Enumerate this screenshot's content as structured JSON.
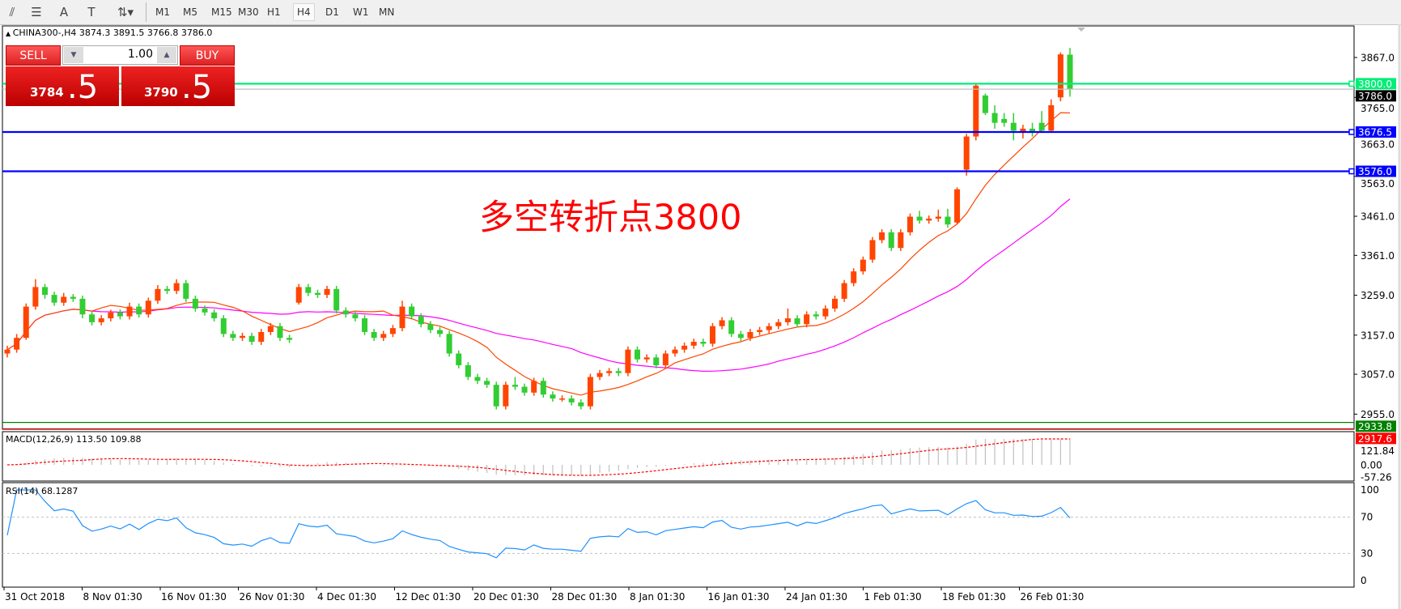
{
  "toolbar": {
    "icons": [
      "indicators-icon",
      "fibonacci-icon",
      "text-icon",
      "text-label-icon",
      "arrows-icon"
    ],
    "timeframes": [
      "M1",
      "M5",
      "M15",
      "M30",
      "H1",
      "H4",
      "D1",
      "W1",
      "MN"
    ],
    "selected_timeframe": "H4"
  },
  "chart_header": {
    "text": "CHINA300-,H4  3874.3 3891.5 3766.8 3786.0"
  },
  "trade_panel": {
    "sell_label": "SELL",
    "buy_label": "BUY",
    "lots": "1.00",
    "sell_price_main": "3784",
    "sell_price_pip": ".5",
    "buy_price_main": "3790",
    "buy_price_pip": ".5"
  },
  "annotation": "多空转折点3800",
  "colors": {
    "up": "#ff4500",
    "down": "#32cd32",
    "ma_fast": "#ff4500",
    "ma_slow": "#ff00ff",
    "rsi": "#1e90ff",
    "macd_signal": "#ff0000",
    "macd_hist": "#c0c0c0"
  },
  "chart_data": {
    "type": "candlestick",
    "symbol": "CHINA300-",
    "timeframe": "H4",
    "ylim": [
      2900,
      3900
    ],
    "y_ticks": [
      "3867.0",
      "3765.0",
      "3663.0",
      "3563.0",
      "3461.0",
      "3361.0",
      "3259.0",
      "3157.0",
      "3057.0",
      "2955.0"
    ],
    "x_ticks": [
      "31 Oct 2018",
      "8 Nov 01:30",
      "16 Nov 01:30",
      "26 Nov 01:30",
      "4 Dec 01:30",
      "12 Dec 01:30",
      "20 Dec 01:30",
      "28 Dec 01:30",
      "8 Jan 01:30",
      "16 Jan 01:30",
      "24 Jan 01:30",
      "1 Feb 01:30",
      "18 Feb 01:30",
      "26 Feb 01:30"
    ],
    "candles_ohlc": [
      [
        3110,
        3130,
        3100,
        3120
      ],
      [
        3120,
        3160,
        3112,
        3150
      ],
      [
        3150,
        3238,
        3145,
        3230
      ],
      [
        3230,
        3300,
        3222,
        3280
      ],
      [
        3280,
        3288,
        3250,
        3260
      ],
      [
        3260,
        3268,
        3232,
        3240
      ],
      [
        3240,
        3265,
        3232,
        3255
      ],
      [
        3255,
        3262,
        3242,
        3250
      ],
      [
        3250,
        3258,
        3200,
        3210
      ],
      [
        3210,
        3218,
        3182,
        3190
      ],
      [
        3190,
        3208,
        3182,
        3200
      ],
      [
        3200,
        3222,
        3192,
        3215
      ],
      [
        3215,
        3223,
        3197,
        3205
      ],
      [
        3205,
        3240,
        3197,
        3230
      ],
      [
        3230,
        3238,
        3202,
        3210
      ],
      [
        3210,
        3253,
        3202,
        3245
      ],
      [
        3245,
        3285,
        3237,
        3275
      ],
      [
        3275,
        3283,
        3262,
        3270
      ],
      [
        3270,
        3300,
        3262,
        3290
      ],
      [
        3290,
        3298,
        3242,
        3250
      ],
      [
        3250,
        3258,
        3217,
        3225
      ],
      [
        3225,
        3233,
        3207,
        3215
      ],
      [
        3215,
        3223,
        3192,
        3200
      ],
      [
        3200,
        3208,
        3152,
        3160
      ],
      [
        3160,
        3168,
        3142,
        3150
      ],
      [
        3150,
        3163,
        3142,
        3155
      ],
      [
        3155,
        3163,
        3132,
        3140
      ],
      [
        3140,
        3173,
        3132,
        3165
      ],
      [
        3165,
        3188,
        3157,
        3180
      ],
      [
        3180,
        3188,
        3142,
        3150
      ],
      [
        3150,
        3158,
        3137,
        3145
      ],
      [
        3240,
        3288,
        3235,
        3280
      ],
      [
        3280,
        3288,
        3257,
        3265
      ],
      [
        3265,
        3273,
        3252,
        3260
      ],
      [
        3260,
        3283,
        3252,
        3275
      ],
      [
        3275,
        3283,
        3212,
        3220
      ],
      [
        3220,
        3228,
        3202,
        3210
      ],
      [
        3210,
        3218,
        3192,
        3200
      ],
      [
        3200,
        3208,
        3157,
        3165
      ],
      [
        3165,
        3173,
        3142,
        3150
      ],
      [
        3150,
        3168,
        3142,
        3160
      ],
      [
        3160,
        3183,
        3152,
        3175
      ],
      [
        3175,
        3245,
        3167,
        3230
      ],
      [
        3230,
        3238,
        3197,
        3205
      ],
      [
        3205,
        3213,
        3177,
        3185
      ],
      [
        3185,
        3193,
        3162,
        3170
      ],
      [
        3170,
        3178,
        3152,
        3160
      ],
      [
        3160,
        3168,
        3102,
        3110
      ],
      [
        3110,
        3118,
        3072,
        3080
      ],
      [
        3080,
        3088,
        3042,
        3050
      ],
      [
        3050,
        3058,
        3032,
        3040
      ],
      [
        3040,
        3048,
        3022,
        3030
      ],
      [
        3030,
        3038,
        2967,
        2975
      ],
      [
        2975,
        3038,
        2967,
        3030
      ],
      [
        3030,
        3050,
        3017,
        3025
      ],
      [
        3025,
        3033,
        3002,
        3010
      ],
      [
        3010,
        3048,
        3002,
        3040
      ],
      [
        3040,
        3048,
        2997,
        3005
      ],
      [
        3005,
        3013,
        2987,
        2995
      ],
      [
        2995,
        3003,
        2987,
        2995
      ],
      [
        2995,
        3003,
        2977,
        2985
      ],
      [
        2985,
        2993,
        2967,
        2975
      ],
      [
        2975,
        3058,
        2967,
        3050
      ],
      [
        3050,
        3068,
        3042,
        3060
      ],
      [
        3060,
        3073,
        3052,
        3065
      ],
      [
        3065,
        3073,
        3052,
        3060
      ],
      [
        3060,
        3128,
        3052,
        3120
      ],
      [
        3120,
        3128,
        3087,
        3095
      ],
      [
        3095,
        3108,
        3087,
        3100
      ],
      [
        3100,
        3108,
        3072,
        3080
      ],
      [
        3080,
        3118,
        3072,
        3110
      ],
      [
        3110,
        3128,
        3102,
        3120
      ],
      [
        3120,
        3138,
        3112,
        3130
      ],
      [
        3130,
        3148,
        3122,
        3140
      ],
      [
        3140,
        3148,
        3127,
        3135
      ],
      [
        3135,
        3188,
        3127,
        3180
      ],
      [
        3180,
        3203,
        3172,
        3195
      ],
      [
        3195,
        3203,
        3152,
        3160
      ],
      [
        3160,
        3168,
        3142,
        3150
      ],
      [
        3150,
        3173,
        3142,
        3165
      ],
      [
        3165,
        3178,
        3157,
        3170
      ],
      [
        3170,
        3188,
        3162,
        3180
      ],
      [
        3180,
        3198,
        3172,
        3190
      ],
      [
        3190,
        3225,
        3182,
        3200
      ],
      [
        3200,
        3208,
        3177,
        3185
      ],
      [
        3185,
        3218,
        3177,
        3210
      ],
      [
        3210,
        3218,
        3197,
        3205
      ],
      [
        3205,
        3233,
        3197,
        3225
      ],
      [
        3225,
        3258,
        3217,
        3250
      ],
      [
        3250,
        3298,
        3242,
        3290
      ],
      [
        3290,
        3328,
        3282,
        3320
      ],
      [
        3320,
        3358,
        3312,
        3350
      ],
      [
        3350,
        3408,
        3342,
        3400
      ],
      [
        3400,
        3428,
        3392,
        3420
      ],
      [
        3420,
        3428,
        3372,
        3380
      ],
      [
        3380,
        3428,
        3372,
        3420
      ],
      [
        3420,
        3468,
        3412,
        3460
      ],
      [
        3460,
        3475,
        3442,
        3450
      ],
      [
        3450,
        3463,
        3442,
        3455
      ],
      [
        3455,
        3478,
        3447,
        3460
      ],
      [
        3460,
        3480,
        3432,
        3440
      ],
      [
        3445,
        3535,
        3440,
        3530
      ],
      [
        3580,
        3672,
        3565,
        3665
      ],
      [
        3665,
        3800,
        3655,
        3795
      ],
      [
        3770,
        3775,
        3720,
        3725
      ],
      [
        3725,
        3745,
        3685,
        3700
      ],
      [
        3710,
        3725,
        3690,
        3700
      ],
      [
        3700,
        3725,
        3655,
        3680
      ],
      [
        3675,
        3695,
        3660,
        3685
      ],
      [
        3685,
        3700,
        3665,
        3675
      ],
      [
        3700,
        3730,
        3675,
        3680
      ],
      [
        3680,
        3760,
        3675,
        3745
      ],
      [
        3765,
        3880,
        3755,
        3875
      ],
      [
        3874.3,
        3891.5,
        3766.8,
        3786.0
      ]
    ],
    "horizontal_lines": [
      {
        "price": 3800.0,
        "label": "3800.0",
        "color": "#00ee76"
      },
      {
        "price": 3786.0,
        "label": "3786.0",
        "color": "#c0c0c0",
        "label_bg": "#000000"
      },
      {
        "price": 3676.5,
        "label": "3676.5",
        "color": "#0000ff"
      },
      {
        "price": 3576.0,
        "label": "3576.0",
        "color": "#0000ff"
      },
      {
        "price": 2933.8,
        "label": "2933.8",
        "color": "#008000"
      },
      {
        "price": 2917.6,
        "label": "2917.6",
        "color": "#ff0000"
      }
    ],
    "macd": {
      "label": "MACD(12,26,9) 113.50 109.88",
      "ticks": [
        "121.84",
        "0.00",
        "-57.26"
      ],
      "max": 121.84,
      "min": -57.26
    },
    "rsi": {
      "label": "RSI(14) 68.1287",
      "ticks": [
        "100",
        "70",
        "30",
        "0"
      ],
      "levels": [
        70,
        30
      ]
    }
  }
}
